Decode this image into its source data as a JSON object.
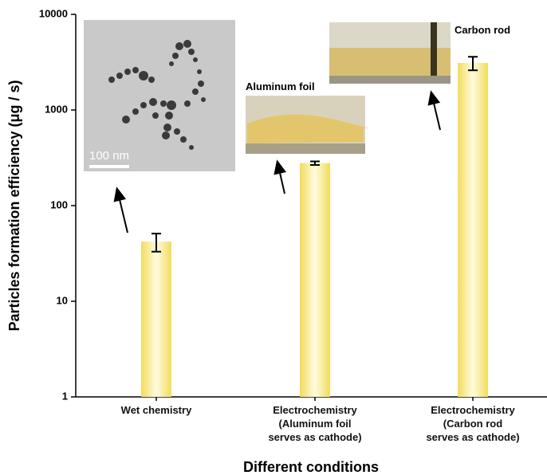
{
  "chart_data": {
    "type": "bar",
    "categories": [
      "Wet chemistry",
      "Electrochemistry\n(Aluminum foil\nserves as cathode)",
      "Electrochemistry\n(Carbon rod\nserves as cathode)"
    ],
    "values": [
      42,
      278,
      3100
    ],
    "errors": [
      9,
      12,
      500
    ],
    "color": "#f2dc5a",
    "x_label": "Different conditions",
    "y_label": "Particles formation efficiency (μg / s)",
    "y_scale": "log",
    "ylim": [
      1,
      10000
    ],
    "yticks": [
      1,
      10,
      100,
      1000,
      10000
    ],
    "annotations": [
      "Aluminum foil",
      "Carbon rod",
      "100 nm"
    ]
  }
}
